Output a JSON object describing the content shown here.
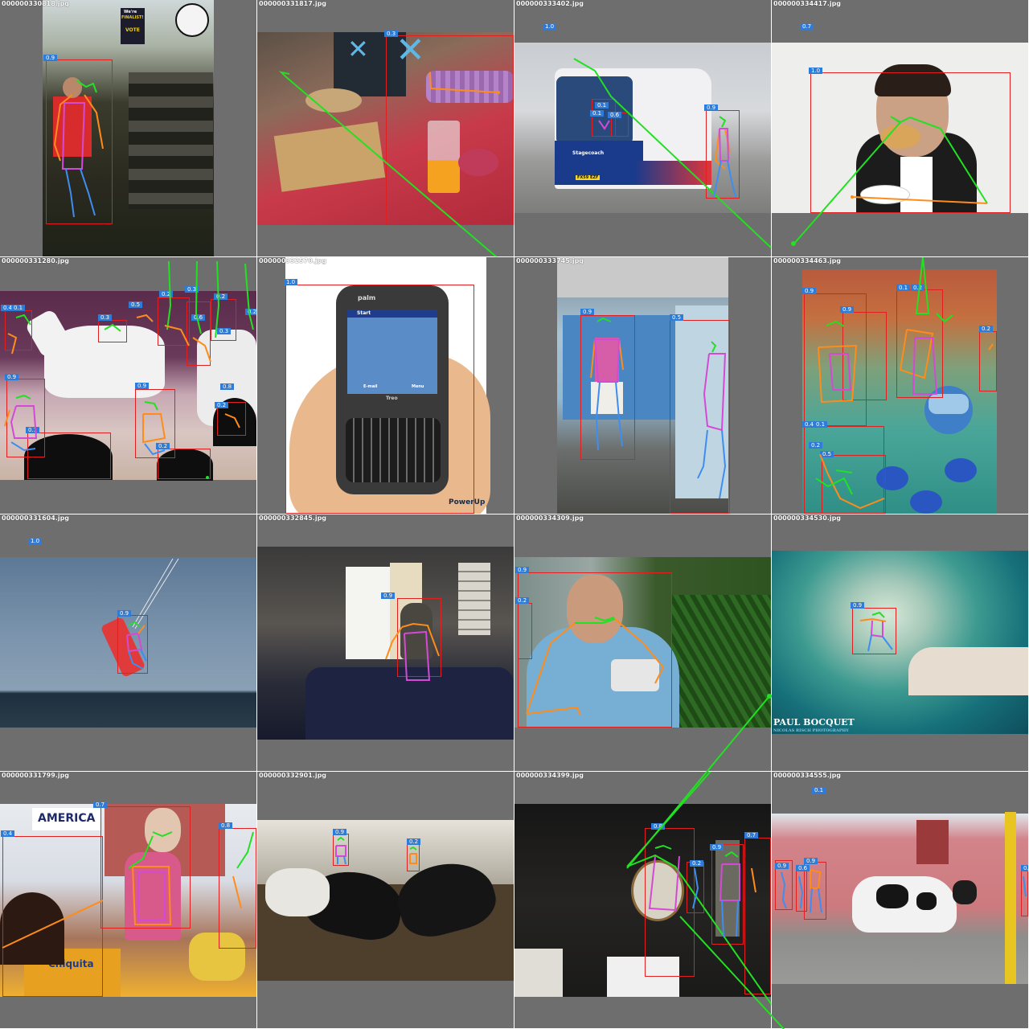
{
  "colors": {
    "tile_bg": "#6e6e6e",
    "box": "#e02020",
    "badge": "#2f7bd8",
    "limb_head": "#22e022",
    "limb_arm": "#ff8c1a",
    "limb_torso": "#d44ad4",
    "limb_leg": "#3d8ef0"
  },
  "tiles": [
    {
      "filename": "000000330818.jpg",
      "badges": [
        "0.9"
      ]
    },
    {
      "filename": "000000331817.jpg",
      "badges": [
        "0.3"
      ]
    },
    {
      "filename": "000000333402.jpg",
      "badges": [
        "1.0",
        "0.9",
        "0.1",
        "0.1",
        "0.6"
      ]
    },
    {
      "filename": "000000334417.jpg",
      "badges": [
        "0.7",
        "1.0"
      ]
    },
    {
      "filename": "000000331280.jpg",
      "badges": [
        "0.4",
        "0.1",
        "0.3",
        "0.5",
        "0.2",
        "0.3",
        "0.2",
        "0.2",
        "0.6",
        "0.3",
        "0.9",
        "0.9",
        "0.8",
        "0.2",
        "0.1",
        "0.2"
      ]
    },
    {
      "filename": "000000332570.jpg",
      "badges": [
        "1.0"
      ]
    },
    {
      "filename": "000000333745.jpg",
      "badges": [
        "0.9",
        "0.5"
      ]
    },
    {
      "filename": "000000334463.jpg",
      "badges": [
        "0.9",
        "0.9",
        "0.1",
        "0.2",
        "0.2",
        "0.4",
        "0.1",
        "0.2",
        "0.5"
      ]
    },
    {
      "filename": "000000331604.jpg",
      "badges": [
        "1.0",
        "0.9"
      ]
    },
    {
      "filename": "000000332845.jpg",
      "badges": [
        "0.9"
      ]
    },
    {
      "filename": "000000334309.jpg",
      "badges": [
        "0.9",
        "0.2"
      ]
    },
    {
      "filename": "000000334530.jpg",
      "badges": [
        "0.9"
      ]
    },
    {
      "filename": "000000331799.jpg",
      "badges": [
        "0.7",
        "0.4",
        "0.8"
      ]
    },
    {
      "filename": "000000332901.jpg",
      "badges": [
        "0.9",
        "0.2"
      ]
    },
    {
      "filename": "000000334399.jpg",
      "badges": [
        "0.8",
        "0.9",
        "0.7",
        "0.2"
      ]
    },
    {
      "filename": "000000334555.jpg",
      "badges": [
        "0.1",
        "0.9",
        "0.9",
        "0.6",
        "0.8"
      ]
    }
  ],
  "photo_text": {
    "phone_brand": "palm",
    "phone_model": "Treo",
    "phone_app": "Start",
    "phone_softkey_left": "E-mail",
    "phone_softkey_right": "Menu",
    "phone_watermark": "PowerUp",
    "bus_brand": "Stagecoach",
    "bus_plate": "FX59 EZF",
    "poster_line1": "We're",
    "poster_line2": "FINALIST!",
    "poster_line3": "VOTE",
    "surf_credit": "PAUL BOCQUET",
    "surf_credit_sub": "NICOLAS RISCH PHOTOGRAPHY",
    "market_sign": "AMERICA",
    "market_box": "Chiquita"
  }
}
